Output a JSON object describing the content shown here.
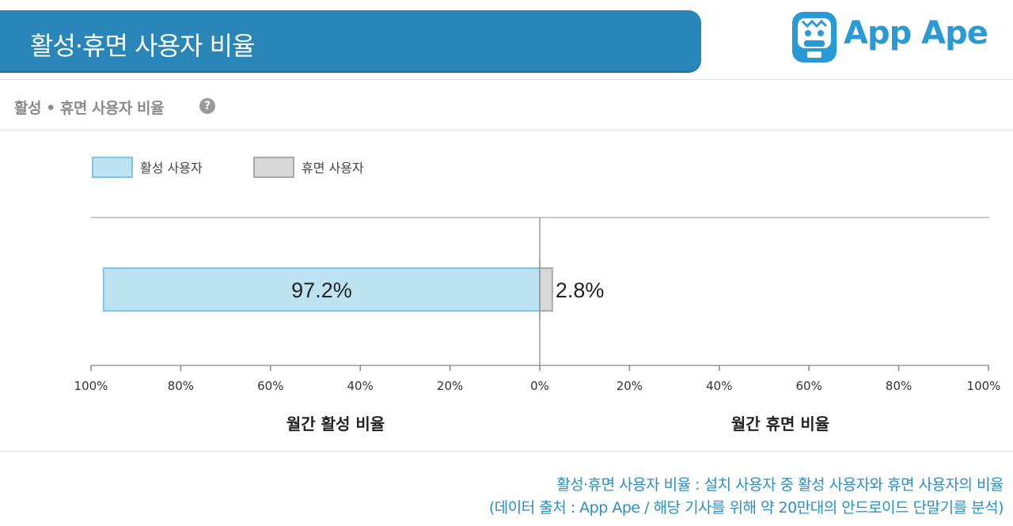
{
  "header": {
    "title": "활성·휴면 사용자 비율"
  },
  "logo": {
    "text": "App Ape"
  },
  "section": {
    "title": "활성 • 휴면 사용자 비율",
    "help_icon": "question-circle-icon"
  },
  "colors": {
    "active_fill": "#bde3f3",
    "active_stroke": "#7fc6e4",
    "inactive_fill": "#d7d7d7",
    "inactive_stroke": "#a9a9a9",
    "brand": "#2a86b9"
  },
  "chart_data": {
    "type": "bar",
    "orientation": "horizontal-diverging",
    "categories": [
      ""
    ],
    "series": [
      {
        "name": "활성 사용자",
        "values": [
          97.2
        ],
        "label": "97.2%",
        "side": "left"
      },
      {
        "name": "휴면 사용자",
        "values": [
          2.8
        ],
        "label": "2.8%",
        "side": "right"
      }
    ],
    "x_left_ticks": [
      "100%",
      "80%",
      "60%",
      "40%",
      "20%"
    ],
    "x_center_tick": "0%",
    "x_right_ticks": [
      "20%",
      "40%",
      "60%",
      "80%",
      "100%"
    ],
    "xlim": [
      0,
      100
    ],
    "xlabel_left": "월간 활성 비율",
    "xlabel_right": "월간 휴면 비율",
    "legend": "top-left",
    "grid": false
  },
  "footer": {
    "line1": "활성·휴면 사용자 비율 : 설치 사용자 중 활성 사용자와 휴면 사용자의 비율",
    "line2": "(데이터 출처 : App Ape / 해당 기사를 위해 약 20만대의 안드로이드 단말기를 분석)"
  }
}
